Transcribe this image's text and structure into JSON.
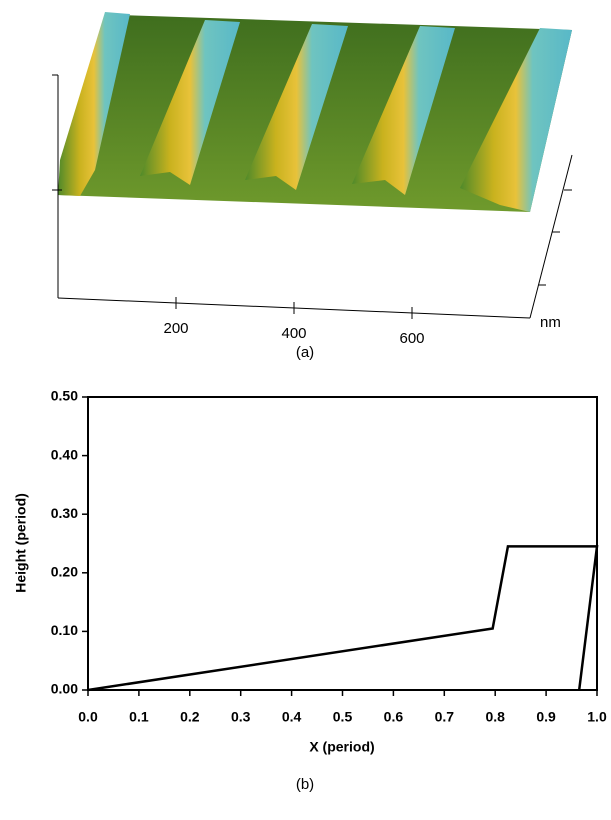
{
  "chart_data": [
    {
      "type": "surface",
      "caption": "(a)",
      "xlabel": "nm",
      "xlim": [
        0,
        800
      ],
      "xticks": [
        200,
        400,
        600
      ]
    },
    {
      "type": "line",
      "caption": "(b)",
      "xlabel": "X (period)",
      "ylabel": "Height (period)",
      "x": [
        0,
        0.795,
        0.825,
        1.0,
        0.965
      ],
      "values": [
        0,
        0.105,
        0.245,
        0.245,
        0
      ],
      "color": "#000000",
      "xlim": [
        0,
        1
      ],
      "ylim": [
        0,
        0.5
      ],
      "xticks": [
        {
          "value": 0,
          "label": "0.0"
        },
        {
          "value": 0.1,
          "label": "0.1"
        },
        {
          "value": 0.2,
          "label": "0.2"
        },
        {
          "value": 0.3,
          "label": "0.3"
        },
        {
          "value": 0.4,
          "label": "0.4"
        },
        {
          "value": 0.5,
          "label": "0.5"
        },
        {
          "value": 0.6,
          "label": "0.6"
        },
        {
          "value": 0.7,
          "label": "0.7"
        },
        {
          "value": 0.8,
          "label": "0.8"
        },
        {
          "value": 0.9,
          "label": "0.9"
        },
        {
          "value": 1,
          "label": "1.0"
        }
      ],
      "yticks": [
        {
          "value": 0,
          "label": "0.00"
        },
        {
          "value": 0.1,
          "label": "0.10"
        },
        {
          "value": 0.2,
          "label": "0.20"
        },
        {
          "value": 0.3,
          "label": "0.30"
        },
        {
          "value": 0.4,
          "label": "0.40"
        },
        {
          "value": 0.5,
          "label": "0.50"
        }
      ]
    }
  ]
}
